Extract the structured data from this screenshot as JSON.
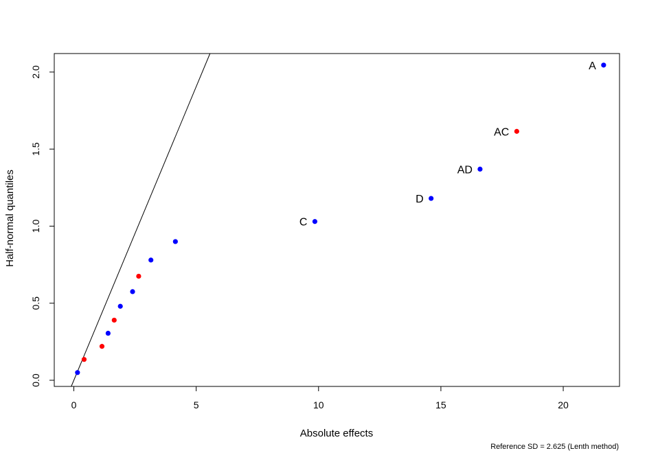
{
  "chart_data": {
    "type": "scatter",
    "xlabel": "Absolute effects",
    "ylabel": "Half-normal quantiles",
    "footnote": "Reference SD = 2.625 (Lenth method)",
    "xlim": [
      -0.8,
      22.3
    ],
    "ylim": [
      -0.04,
      2.12
    ],
    "xticks": [
      0,
      5,
      10,
      15,
      20
    ],
    "xtick_labels": [
      "0",
      "5",
      "10",
      "15",
      "20"
    ],
    "yticks": [
      0.0,
      0.5,
      1.0,
      1.5,
      2.0
    ],
    "ytick_labels": [
      "0.0",
      "0.5",
      "1.0",
      "1.5",
      "2.0"
    ],
    "grid": false,
    "colors": {
      "positive": "#0000ff",
      "negative": "#ff0000"
    },
    "points": [
      {
        "x": 0.15,
        "y": 0.05,
        "color": "#0000ff",
        "label": ""
      },
      {
        "x": 0.42,
        "y": 0.135,
        "color": "#ff0000",
        "label": ""
      },
      {
        "x": 1.15,
        "y": 0.22,
        "color": "#ff0000",
        "label": ""
      },
      {
        "x": 1.4,
        "y": 0.305,
        "color": "#0000ff",
        "label": ""
      },
      {
        "x": 1.65,
        "y": 0.39,
        "color": "#ff0000",
        "label": ""
      },
      {
        "x": 1.9,
        "y": 0.48,
        "color": "#0000ff",
        "label": ""
      },
      {
        "x": 2.4,
        "y": 0.575,
        "color": "#0000ff",
        "label": ""
      },
      {
        "x": 2.65,
        "y": 0.675,
        "color": "#ff0000",
        "label": ""
      },
      {
        "x": 3.15,
        "y": 0.78,
        "color": "#0000ff",
        "label": ""
      },
      {
        "x": 4.15,
        "y": 0.9,
        "color": "#0000ff",
        "label": ""
      },
      {
        "x": 9.85,
        "y": 1.03,
        "color": "#0000ff",
        "label": "C"
      },
      {
        "x": 14.6,
        "y": 1.18,
        "color": "#0000ff",
        "label": "D"
      },
      {
        "x": 16.6,
        "y": 1.37,
        "color": "#0000ff",
        "label": "AD"
      },
      {
        "x": 18.1,
        "y": 1.615,
        "color": "#ff0000",
        "label": "AC"
      },
      {
        "x": 21.65,
        "y": 2.045,
        "color": "#0000ff",
        "label": "A"
      }
    ],
    "reference_line": {
      "intercept": 0,
      "slope": 0.381
    }
  }
}
